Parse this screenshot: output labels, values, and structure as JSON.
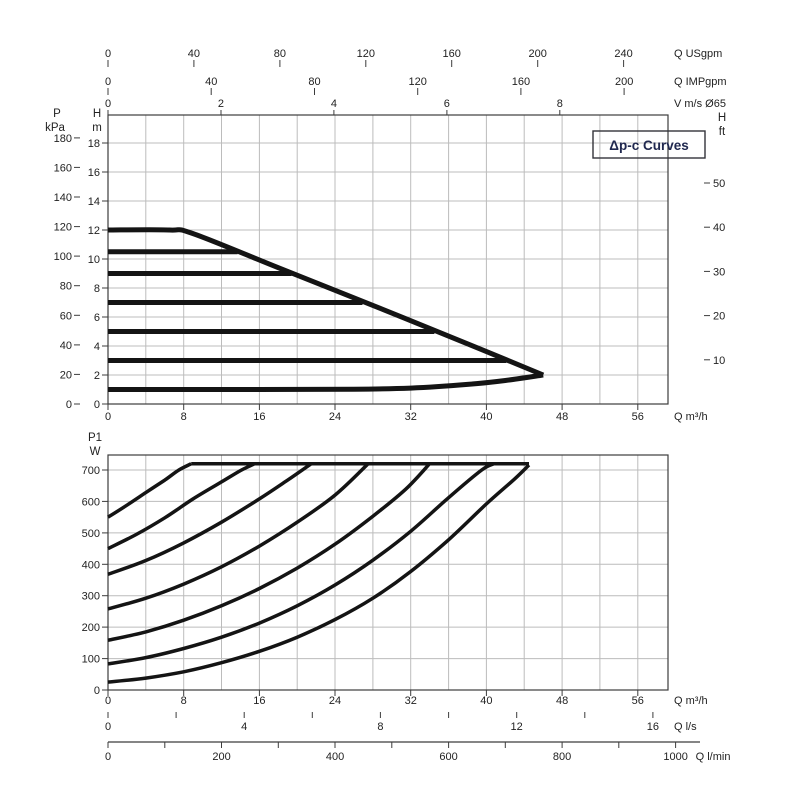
{
  "annotation": {
    "dp_c": "Δp-c Curves"
  },
  "unit_labels": {
    "pressure": {
      "l1": "P",
      "l2": "kPa"
    },
    "head_m": {
      "l1": "H",
      "l2": "m"
    },
    "head_ft": {
      "l1": "H",
      "l2": "ft"
    },
    "power": {
      "l1": "P1",
      "l2": "W"
    }
  },
  "colors": {
    "curve": "#141414",
    "grid": "#bcbcbc",
    "frame": "#3c3c3c",
    "text": "#222222",
    "annotation_text": "#20284f",
    "background": "#ffffff"
  },
  "chart_data": [
    {
      "name": "head-vs-flow",
      "type": "line",
      "title": "Δp-c Curves",
      "xlabel": "Q m³/h",
      "x_axis": {
        "label": "Q m³/h",
        "ticks": [
          0,
          8,
          16,
          24,
          32,
          40,
          48,
          56
        ],
        "grid_step": 4,
        "xlim": [
          0,
          59.2
        ]
      },
      "y_axis_m": {
        "label": "H m",
        "ticks": [
          0,
          2,
          4,
          6,
          8,
          10,
          12,
          14,
          16,
          18
        ],
        "grid_step": 2,
        "ylim": [
          0,
          19.9
        ]
      },
      "y_axis_kpa": {
        "label": "P kPa",
        "ticks": [
          0,
          20,
          40,
          60,
          80,
          100,
          120,
          140,
          160,
          180
        ],
        "kpa_per_m": 9.80665
      },
      "y_axis_ft": {
        "label": "H ft",
        "ticks": [
          10,
          20,
          30,
          40,
          50
        ],
        "ft_per_m": 3.28084
      },
      "top_axes": [
        {
          "label": "Q USgpm",
          "ticks": [
            0,
            40,
            80,
            120,
            160,
            200,
            240
          ],
          "m3h_per_unit": 0.2271
        },
        {
          "label": "Q IMPgpm",
          "ticks": [
            0,
            40,
            80,
            120,
            160,
            200
          ],
          "m3h_per_unit": 0.2728
        },
        {
          "label": "V m/s Ø65",
          "ticks": [
            0,
            2,
            4,
            6,
            8
          ],
          "m3h_per_unit": 5.97
        }
      ],
      "series": [
        {
          "name": "max-speed-curve",
          "points": [
            [
              0,
              12
            ],
            [
              6.5,
              12
            ],
            [
              9,
              11.75
            ],
            [
              18,
              9.4
            ],
            [
              28,
              6.8
            ],
            [
              38,
              4.15
            ],
            [
              46,
              2
            ]
          ]
        },
        {
          "name": "setpoint-10-5-m",
          "points": [
            [
              0,
              10.5
            ],
            [
              13.7,
              10.5
            ]
          ]
        },
        {
          "name": "setpoint-9-m",
          "points": [
            [
              0,
              9
            ],
            [
              19.4,
              9
            ]
          ]
        },
        {
          "name": "setpoint-7-m",
          "points": [
            [
              0,
              7
            ],
            [
              26.9,
              7
            ]
          ]
        },
        {
          "name": "setpoint-5-m",
          "points": [
            [
              0,
              5
            ],
            [
              34.5,
              5
            ]
          ]
        },
        {
          "name": "setpoint-3-m",
          "points": [
            [
              0,
              3
            ],
            [
              42.1,
              3
            ]
          ]
        },
        {
          "name": "min-speed-curve",
          "points": [
            [
              0,
              1
            ],
            [
              16,
              1
            ],
            [
              26,
              1.02
            ],
            [
              32,
              1.1
            ],
            [
              38,
              1.35
            ],
            [
              42,
              1.62
            ],
            [
              46,
              2
            ]
          ]
        }
      ]
    },
    {
      "name": "power-vs-flow",
      "type": "line",
      "xlabel": "Q m³/h",
      "ylabel": "P1 W",
      "x_axis": {
        "label": "Q m³/h",
        "ticks": [
          0,
          8,
          16,
          24,
          32,
          40,
          48,
          56
        ],
        "grid_step": 4,
        "xlim": [
          0,
          59.2
        ]
      },
      "y_axis": {
        "label": "P1 W",
        "ticks": [
          0,
          100,
          200,
          300,
          400,
          500,
          600,
          700
        ],
        "grid_step": 100,
        "ylim": [
          0,
          748
        ]
      },
      "bottom_axes": [
        {
          "label": "Q l/s",
          "ticks": [
            0,
            4,
            8,
            12,
            16
          ],
          "minor_step": 2,
          "max_minor": 16,
          "m3h_per_unit": 3.6
        },
        {
          "label": "Q l/min",
          "ticks": [
            0,
            200,
            400,
            600,
            800,
            1000
          ],
          "minor_step": 100,
          "max_minor": 1000,
          "m3h_per_unit": 0.06
        }
      ],
      "series": [
        {
          "name": "power-curve-1",
          "points": [
            [
              0,
              550
            ],
            [
              2,
              588
            ],
            [
              4,
              628
            ],
            [
              6,
              668
            ],
            [
              7.5,
              700
            ],
            [
              8.8,
              720
            ]
          ]
        },
        {
          "name": "power-curve-2",
          "points": [
            [
              0,
              450
            ],
            [
              3,
              495
            ],
            [
              6,
              548
            ],
            [
              9,
              608
            ],
            [
              12,
              662
            ],
            [
              14,
              698
            ],
            [
              15.5,
              720
            ]
          ]
        },
        {
          "name": "power-curve-3",
          "points": [
            [
              0,
              368
            ],
            [
              4,
              412
            ],
            [
              8,
              468
            ],
            [
              12,
              534
            ],
            [
              16,
              608
            ],
            [
              19,
              668
            ],
            [
              21.5,
              720
            ]
          ]
        },
        {
          "name": "power-curve-4",
          "points": [
            [
              0,
              258
            ],
            [
              4,
              292
            ],
            [
              8,
              337
            ],
            [
              12,
              392
            ],
            [
              16,
              458
            ],
            [
              20,
              534
            ],
            [
              24,
              620
            ],
            [
              27.5,
              720
            ]
          ]
        },
        {
          "name": "power-curve-5",
          "points": [
            [
              0,
              158
            ],
            [
              4,
              185
            ],
            [
              8,
              222
            ],
            [
              12,
              268
            ],
            [
              16,
              323
            ],
            [
              20,
              388
            ],
            [
              24,
              464
            ],
            [
              28,
              553
            ],
            [
              31.5,
              640
            ],
            [
              34,
              720
            ]
          ]
        },
        {
          "name": "power-curve-6",
          "points": [
            [
              0,
              83
            ],
            [
              4,
              103
            ],
            [
              8,
              132
            ],
            [
              12,
              168
            ],
            [
              16,
              213
            ],
            [
              20,
              268
            ],
            [
              24,
              334
            ],
            [
              28,
              413
            ],
            [
              32,
              505
            ],
            [
              36,
              612
            ],
            [
              39.5,
              700
            ],
            [
              40.8,
              720
            ]
          ]
        },
        {
          "name": "power-curve-7",
          "points": [
            [
              0,
              25
            ],
            [
              4,
              38
            ],
            [
              8,
              58
            ],
            [
              12,
              87
            ],
            [
              16,
              123
            ],
            [
              20,
              168
            ],
            [
              24,
              224
            ],
            [
              28,
              292
            ],
            [
              32,
              377
            ],
            [
              36,
              478
            ],
            [
              40,
              592
            ],
            [
              43,
              672
            ],
            [
              44.5,
              716
            ]
          ]
        },
        {
          "name": "max-power-limit",
          "points": [
            [
              8.8,
              720
            ],
            [
              44.5,
              720
            ]
          ]
        }
      ]
    }
  ]
}
